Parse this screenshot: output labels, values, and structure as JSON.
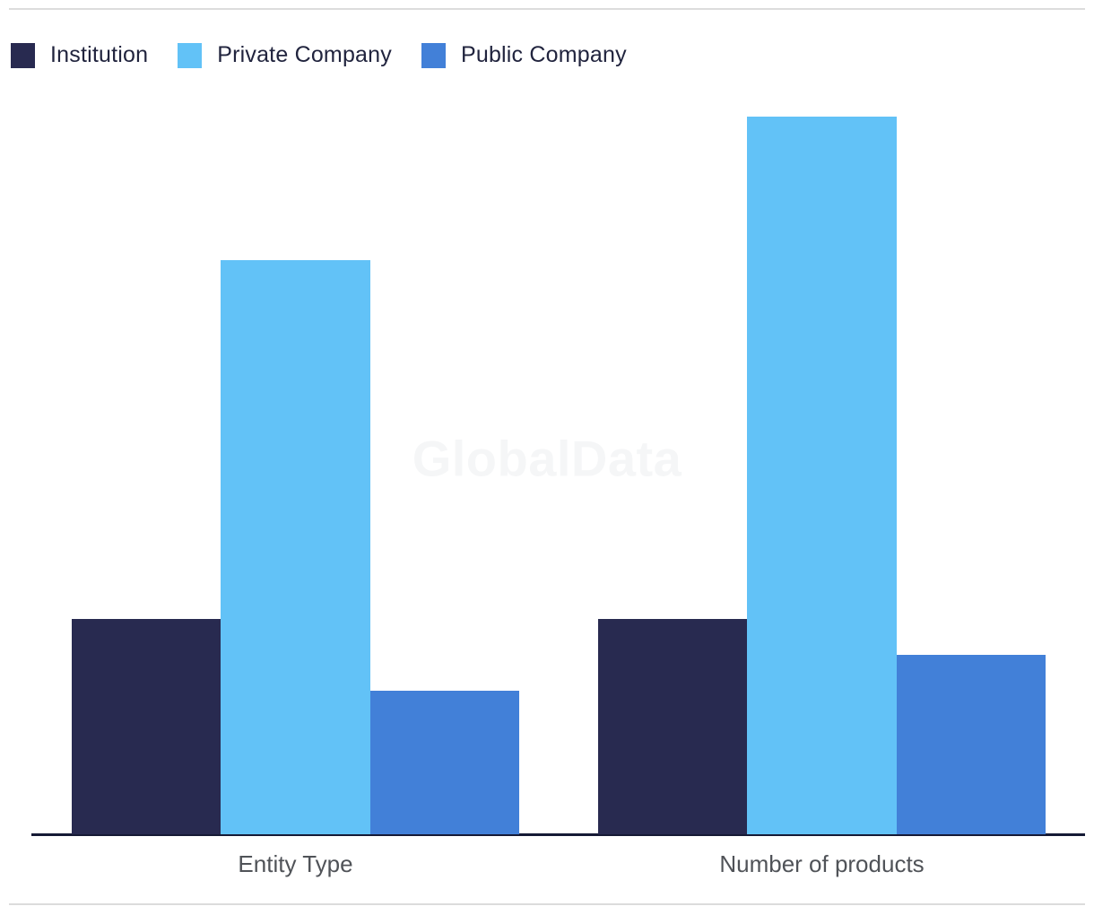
{
  "page": {
    "watermark": "GlobalData"
  },
  "legend": {
    "items": [
      {
        "label": "Institution",
        "color": "#282A50"
      },
      {
        "label": "Private Company",
        "color": "#62C2F7"
      },
      {
        "label": "Public Company",
        "color": "#4280D8"
      }
    ]
  },
  "chart_data": {
    "type": "bar",
    "title": "",
    "xlabel": "",
    "ylabel": "",
    "categories": [
      "Entity Type",
      "Number of products"
    ],
    "series": [
      {
        "name": "Institution",
        "color": "#282A50",
        "values": [
          6,
          6
        ]
      },
      {
        "name": "Private Company",
        "color": "#62C2F7",
        "values": [
          16,
          20
        ]
      },
      {
        "name": "Public Company",
        "color": "#4280D8",
        "values": [
          4,
          5
        ]
      }
    ],
    "ylim": [
      0,
      20
    ],
    "grid": false,
    "axis_ticks_visible": false,
    "legend_position": "top-left",
    "watermark": "GlobalData"
  },
  "colors": {
    "background": "#FFFFFF",
    "axis_line": "#161A35",
    "border_line": "#DCDCDC",
    "axis_label_text": "#505358",
    "legend_text": "#21243E",
    "watermark_text": "#F5F6F7"
  }
}
